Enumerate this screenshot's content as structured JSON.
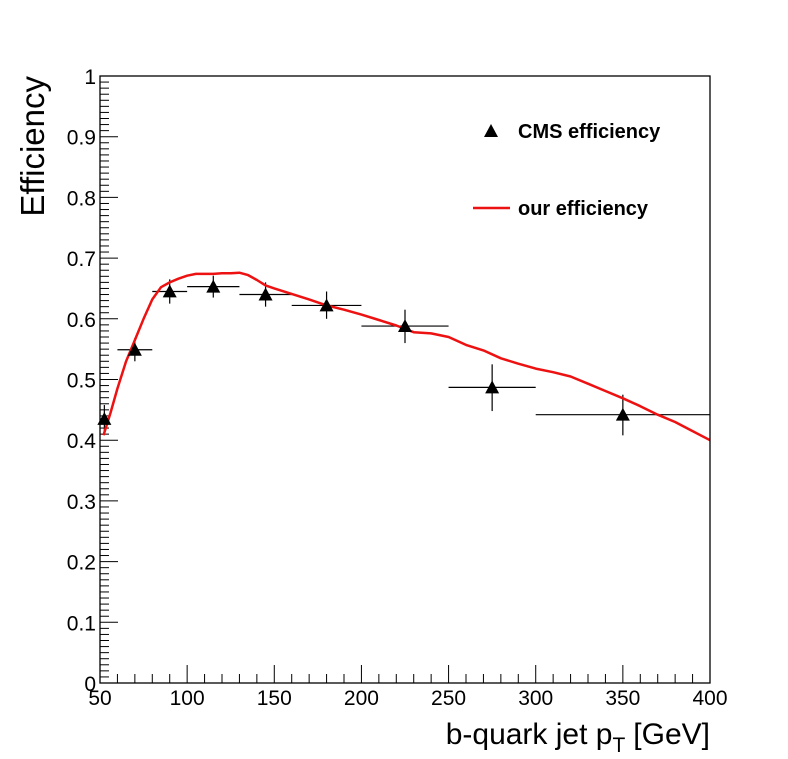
{
  "chart_data": {
    "type": "scatter",
    "xlabel": "b-quark jet p",
    "xlabel_subscript": "T",
    "xlabel_unit": "[GeV]",
    "ylabel": "Efficiency",
    "xlim": [
      50,
      400
    ],
    "ylim": [
      0,
      1
    ],
    "x_ticks": [
      50,
      100,
      150,
      200,
      250,
      300,
      350,
      400
    ],
    "y_ticks": [
      0,
      0.1,
      0.2,
      0.3,
      0.4,
      0.5,
      0.6,
      0.7,
      0.8,
      0.9,
      1
    ],
    "y_tick_labels": [
      "0",
      "0.1",
      "0.2",
      "0.3",
      "0.4",
      "0.5",
      "0.6",
      "0.7",
      "0.8",
      "0.9",
      "1"
    ],
    "grid": false,
    "legend_position": "top-right",
    "series": [
      {
        "name": "CMS efficiency",
        "kind": "points-with-errors",
        "marker": "triangle",
        "color": "#000000",
        "points": [
          {
            "x": 52.5,
            "xlo": 50,
            "xhi": 55,
            "y": 0.435,
            "ylo": 0.415,
            "yhi": 0.458
          },
          {
            "x": 70,
            "xlo": 60,
            "xhi": 80,
            "y": 0.549,
            "ylo": 0.53,
            "yhi": 0.568
          },
          {
            "x": 90,
            "xlo": 80,
            "xhi": 100,
            "y": 0.645,
            "ylo": 0.625,
            "yhi": 0.665
          },
          {
            "x": 115,
            "xlo": 100,
            "xhi": 130,
            "y": 0.653,
            "ylo": 0.635,
            "yhi": 0.671
          },
          {
            "x": 145,
            "xlo": 130,
            "xhi": 160,
            "y": 0.64,
            "ylo": 0.62,
            "yhi": 0.66
          },
          {
            "x": 180,
            "xlo": 160,
            "xhi": 200,
            "y": 0.622,
            "ylo": 0.6,
            "yhi": 0.645
          },
          {
            "x": 225,
            "xlo": 200,
            "xhi": 250,
            "y": 0.588,
            "ylo": 0.56,
            "yhi": 0.615
          },
          {
            "x": 275,
            "xlo": 250,
            "xhi": 300,
            "y": 0.487,
            "ylo": 0.448,
            "yhi": 0.525
          },
          {
            "x": 350,
            "xlo": 300,
            "xhi": 400,
            "y": 0.442,
            "ylo": 0.408,
            "yhi": 0.475
          }
        ]
      },
      {
        "name": "our efficiency",
        "kind": "line",
        "color": "#ee1111",
        "x": [
          52,
          56,
          60,
          65,
          70,
          75,
          80,
          85,
          90,
          95,
          100,
          105,
          110,
          115,
          120,
          125,
          130,
          135,
          140,
          145,
          150,
          160,
          170,
          180,
          190,
          200,
          210,
          220,
          230,
          240,
          250,
          260,
          270,
          280,
          290,
          300,
          310,
          320,
          330,
          340,
          350,
          360,
          370,
          380,
          390,
          400
        ],
        "y": [
          0.408,
          0.445,
          0.485,
          0.53,
          0.565,
          0.6,
          0.632,
          0.652,
          0.66,
          0.666,
          0.671,
          0.674,
          0.674,
          0.674,
          0.675,
          0.675,
          0.676,
          0.672,
          0.664,
          0.655,
          0.65,
          0.641,
          0.632,
          0.622,
          0.615,
          0.607,
          0.598,
          0.589,
          0.578,
          0.576,
          0.57,
          0.557,
          0.548,
          0.535,
          0.526,
          0.518,
          0.512,
          0.505,
          0.493,
          0.481,
          0.469,
          0.456,
          0.442,
          0.43,
          0.415,
          0.4
        ]
      }
    ]
  }
}
